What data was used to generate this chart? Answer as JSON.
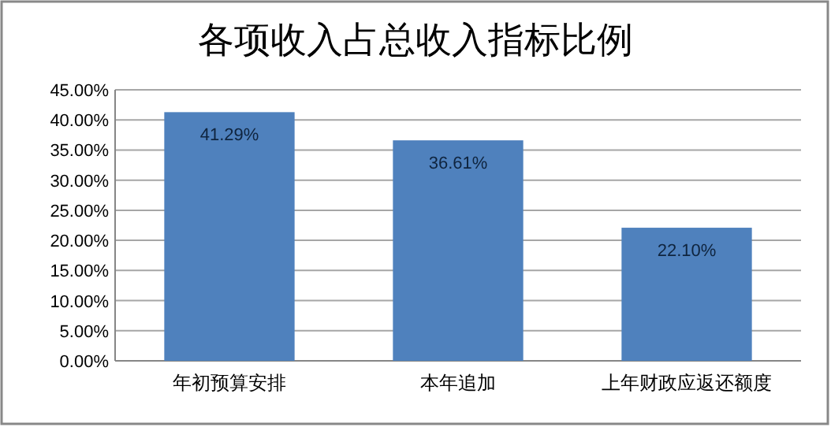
{
  "chart_data": {
    "type": "bar",
    "title": "各项收入占总收入指标比例",
    "categories": [
      "年初预算安排",
      "本年追加",
      "上年财政应返还额度"
    ],
    "values": [
      41.29,
      36.61,
      22.1
    ],
    "color": "#4f81bd",
    "value_labels": [
      "41.29%",
      "36.61%",
      "22.10%"
    ],
    "ylim": [
      0,
      45
    ],
    "yticks": [
      {
        "value": 0,
        "label": "0.00%"
      },
      {
        "value": 5,
        "label": "5.00%"
      },
      {
        "value": 10,
        "label": "10.00%"
      },
      {
        "value": 15,
        "label": "15.00%"
      },
      {
        "value": 20,
        "label": "20.00%"
      },
      {
        "value": 25,
        "label": "25.00%"
      },
      {
        "value": 30,
        "label": "30.00%"
      },
      {
        "value": 35,
        "label": "35.00%"
      },
      {
        "value": 40,
        "label": "40.00%"
      },
      {
        "value": 45,
        "label": "45.00%"
      }
    ],
    "grid": "y"
  }
}
